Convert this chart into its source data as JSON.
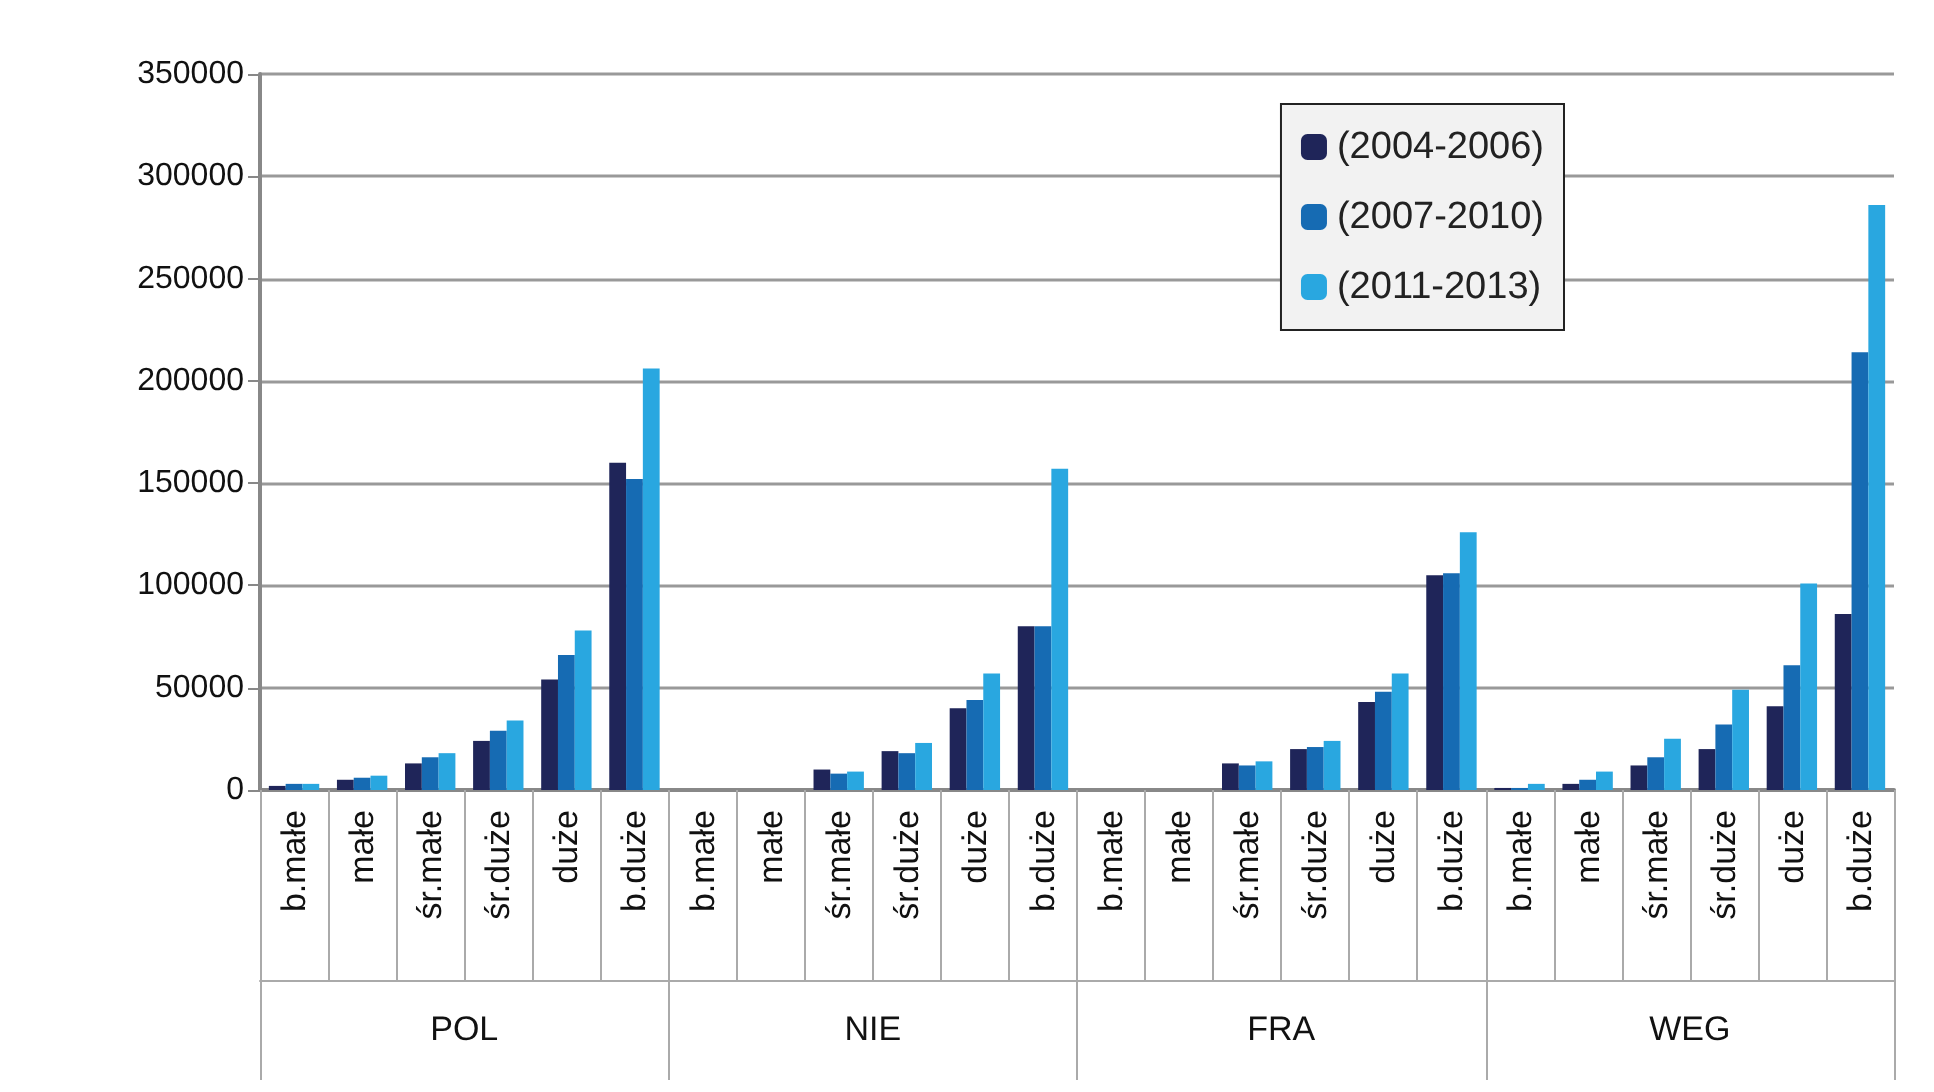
{
  "chart_data": {
    "type": "bar",
    "categories": [
      "b.małe",
      "małe",
      "śr.małe",
      "śr.duże",
      "duże",
      "b.duże",
      "b.małe",
      "małe",
      "śr.małe",
      "śr.duże",
      "duże",
      "b.duże",
      "b.małe",
      "małe",
      "śr.małe",
      "śr.duże",
      "duże",
      "b.duże",
      "b.małe",
      "małe",
      "śr.małe",
      "śr.duże",
      "duże",
      "b.duże"
    ],
    "annotations": [
      "POL",
      "NIE",
      "FRA",
      "WEG"
    ],
    "series": [
      {
        "name": "(2004-2006)",
        "color": "#1f2559",
        "values": [
          2000,
          5000,
          13000,
          24000,
          54000,
          160000,
          0,
          0,
          10000,
          19000,
          40000,
          80000,
          0,
          0,
          13000,
          20000,
          43000,
          105000,
          1000,
          3000,
          12000,
          20000,
          41000,
          86000
        ]
      },
      {
        "name": "(2007-2010)",
        "color": "#166bb3",
        "values": [
          3000,
          6000,
          16000,
          29000,
          66000,
          152000,
          0,
          0,
          8000,
          18000,
          44000,
          80000,
          0,
          0,
          12000,
          21000,
          48000,
          106000,
          1000,
          5000,
          16000,
          32000,
          61000,
          214000
        ]
      },
      {
        "name": "(2011-2013)",
        "color": "#29a7e0",
        "values": [
          3000,
          7000,
          18000,
          34000,
          78000,
          206000,
          0,
          0,
          9000,
          23000,
          57000,
          157000,
          0,
          0,
          14000,
          24000,
          57000,
          126000,
          3000,
          9000,
          25000,
          49000,
          101000,
          286000
        ]
      }
    ],
    "ylim": [
      0,
      350000
    ],
    "yticks": [
      0,
      50000,
      100000,
      150000,
      200000,
      250000,
      300000,
      350000
    ],
    "grid": "y",
    "legend": "top right"
  }
}
